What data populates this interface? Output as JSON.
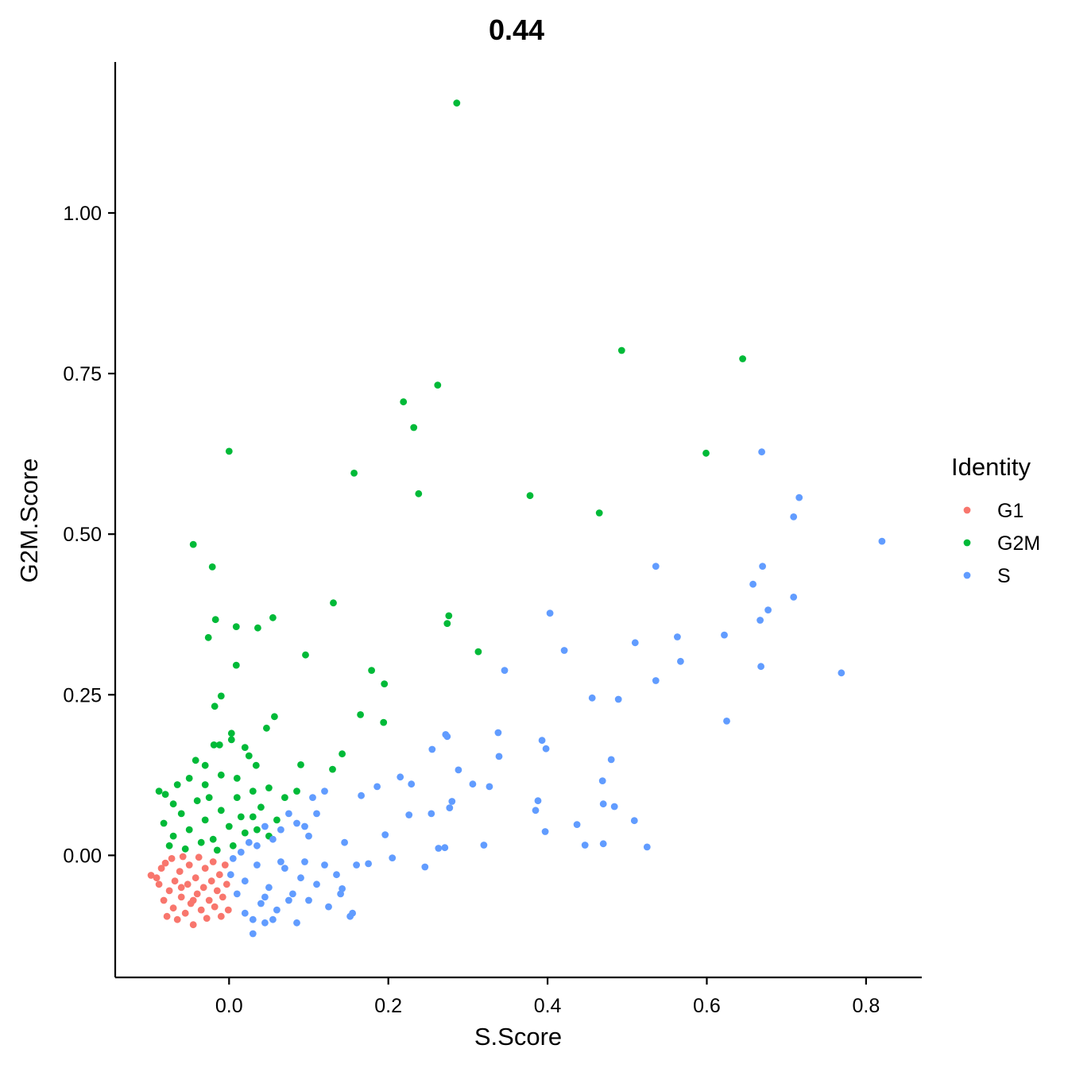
{
  "chart_data": {
    "type": "scatter",
    "title": "0.44",
    "xlabel": "S.Score",
    "ylabel": "G2M.Score",
    "xlim": [
      -0.143,
      0.87
    ],
    "ylim": [
      -0.19,
      1.235
    ],
    "x_ticks": [
      0.0,
      0.2,
      0.4,
      0.6,
      0.8
    ],
    "x_tick_labels": [
      "0.0",
      "0.2",
      "0.4",
      "0.6",
      "0.8"
    ],
    "y_ticks": [
      0.0,
      0.25,
      0.5,
      0.75,
      1.0
    ],
    "y_tick_labels": [
      "0.00",
      "0.25",
      "0.50",
      "0.75",
      "1.00"
    ],
    "grid": false,
    "legend": {
      "title": "Identity",
      "position": "right",
      "entries": [
        "G1",
        "G2M",
        "S"
      ]
    },
    "series": [
      {
        "name": "G1",
        "color": "#F8766D",
        "points": [
          [
            -0.098,
            -0.031
          ],
          [
            -0.091,
            -0.035
          ],
          [
            -0.088,
            -0.045
          ],
          [
            -0.085,
            -0.02
          ],
          [
            -0.082,
            -0.07
          ],
          [
            -0.08,
            -0.012
          ],
          [
            -0.078,
            -0.095
          ],
          [
            -0.075,
            -0.055
          ],
          [
            -0.072,
            -0.005
          ],
          [
            -0.07,
            -0.082
          ],
          [
            -0.068,
            -0.04
          ],
          [
            -0.065,
            -0.1
          ],
          [
            -0.062,
            -0.025
          ],
          [
            -0.06,
            -0.065
          ],
          [
            -0.058,
            -0.002
          ],
          [
            -0.055,
            -0.09
          ],
          [
            -0.052,
            -0.045
          ],
          [
            -0.05,
            -0.015
          ],
          [
            -0.048,
            -0.075
          ],
          [
            -0.045,
            -0.108
          ],
          [
            -0.042,
            -0.035
          ],
          [
            -0.04,
            -0.06
          ],
          [
            -0.038,
            -0.003
          ],
          [
            -0.035,
            -0.085
          ],
          [
            -0.032,
            -0.05
          ],
          [
            -0.03,
            -0.02
          ],
          [
            -0.028,
            -0.098
          ],
          [
            -0.025,
            -0.07
          ],
          [
            -0.022,
            -0.04
          ],
          [
            -0.02,
            -0.01
          ],
          [
            -0.018,
            -0.08
          ],
          [
            -0.015,
            -0.055
          ],
          [
            -0.012,
            -0.03
          ],
          [
            -0.01,
            -0.095
          ],
          [
            -0.008,
            -0.065
          ],
          [
            -0.005,
            -0.015
          ],
          [
            -0.003,
            -0.045
          ],
          [
            -0.001,
            -0.085
          ],
          [
            -0.06,
            -0.05
          ],
          [
            -0.045,
            -0.07
          ]
        ]
      },
      {
        "name": "G2M",
        "color": "#00BA38",
        "points": [
          [
            0.286,
            1.171
          ],
          [
            0.493,
            0.786
          ],
          [
            0.645,
            0.773
          ],
          [
            0.262,
            0.732
          ],
          [
            0.219,
            0.706
          ],
          [
            0.232,
            0.666
          ],
          [
            0.0,
            0.629
          ],
          [
            0.599,
            0.626
          ],
          [
            0.157,
            0.595
          ],
          [
            0.238,
            0.563
          ],
          [
            0.378,
            0.56
          ],
          [
            0.465,
            0.533
          ],
          [
            -0.045,
            0.484
          ],
          [
            -0.021,
            0.449
          ],
          [
            0.131,
            0.393
          ],
          [
            0.276,
            0.373
          ],
          [
            0.055,
            0.37
          ],
          [
            -0.017,
            0.367
          ],
          [
            0.274,
            0.361
          ],
          [
            0.009,
            0.356
          ],
          [
            0.036,
            0.354
          ],
          [
            -0.026,
            0.339
          ],
          [
            0.313,
            0.317
          ],
          [
            0.096,
            0.312
          ],
          [
            0.009,
            0.296
          ],
          [
            0.179,
            0.288
          ],
          [
            0.195,
            0.267
          ],
          [
            -0.01,
            0.248
          ],
          [
            -0.018,
            0.232
          ],
          [
            0.165,
            0.219
          ],
          [
            0.057,
            0.216
          ],
          [
            0.194,
            0.207
          ],
          [
            0.047,
            0.198
          ],
          [
            0.003,
            0.19
          ],
          [
            0.003,
            0.18
          ],
          [
            -0.019,
            0.172
          ],
          [
            -0.012,
            0.172
          ],
          [
            0.142,
            0.158
          ],
          [
            0.02,
            0.168
          ],
          [
            0.025,
            0.155
          ],
          [
            0.09,
            0.141
          ],
          [
            0.13,
            0.134
          ],
          [
            0.034,
            0.14
          ],
          [
            -0.042,
            0.148
          ],
          [
            -0.03,
            0.14
          ],
          [
            -0.088,
            0.1
          ],
          [
            -0.07,
            0.08
          ],
          [
            -0.05,
            0.12
          ],
          [
            -0.03,
            0.11
          ],
          [
            -0.01,
            0.125
          ],
          [
            0.01,
            0.12
          ],
          [
            0.03,
            0.1
          ],
          [
            0.05,
            0.105
          ],
          [
            0.07,
            0.09
          ],
          [
            0.085,
            0.1
          ],
          [
            -0.082,
            0.05
          ],
          [
            -0.07,
            0.03
          ],
          [
            -0.06,
            0.065
          ],
          [
            -0.05,
            0.04
          ],
          [
            -0.04,
            0.085
          ],
          [
            -0.03,
            0.055
          ],
          [
            -0.02,
            0.025
          ],
          [
            -0.01,
            0.07
          ],
          [
            0.0,
            0.045
          ],
          [
            0.01,
            0.09
          ],
          [
            0.02,
            0.035
          ],
          [
            0.03,
            0.06
          ],
          [
            0.04,
            0.075
          ],
          [
            0.05,
            0.03
          ],
          [
            0.06,
            0.055
          ],
          [
            -0.075,
            0.015
          ],
          [
            -0.055,
            0.01
          ],
          [
            -0.035,
            0.02
          ],
          [
            -0.015,
            0.008
          ],
          [
            0.005,
            0.015
          ],
          [
            -0.08,
            0.095
          ],
          [
            -0.065,
            0.11
          ],
          [
            -0.025,
            0.09
          ],
          [
            0.015,
            0.06
          ],
          [
            0.035,
            0.04
          ]
        ]
      },
      {
        "name": "S",
        "color": "#619CFF",
        "points": [
          [
            0.82,
            0.489
          ],
          [
            0.669,
            0.628
          ],
          [
            0.716,
            0.557
          ],
          [
            0.709,
            0.527
          ],
          [
            0.536,
            0.45
          ],
          [
            0.67,
            0.45
          ],
          [
            0.658,
            0.422
          ],
          [
            0.709,
            0.402
          ],
          [
            0.677,
            0.382
          ],
          [
            0.403,
            0.377
          ],
          [
            0.667,
            0.366
          ],
          [
            0.622,
            0.343
          ],
          [
            0.563,
            0.34
          ],
          [
            0.51,
            0.331
          ],
          [
            0.421,
            0.319
          ],
          [
            0.567,
            0.302
          ],
          [
            0.668,
            0.294
          ],
          [
            0.346,
            0.288
          ],
          [
            0.769,
            0.284
          ],
          [
            0.536,
            0.272
          ],
          [
            0.456,
            0.245
          ],
          [
            0.489,
            0.243
          ],
          [
            0.625,
            0.209
          ],
          [
            0.338,
            0.191
          ],
          [
            0.272,
            0.188
          ],
          [
            0.274,
            0.185
          ],
          [
            0.393,
            0.179
          ],
          [
            0.255,
            0.165
          ],
          [
            0.398,
            0.166
          ],
          [
            0.339,
            0.154
          ],
          [
            0.48,
            0.149
          ],
          [
            0.288,
            0.133
          ],
          [
            0.215,
            0.122
          ],
          [
            0.469,
            0.116
          ],
          [
            0.229,
            0.111
          ],
          [
            0.306,
            0.111
          ],
          [
            0.327,
            0.107
          ],
          [
            0.166,
            0.093
          ],
          [
            0.186,
            0.107
          ],
          [
            0.388,
            0.085
          ],
          [
            0.28,
            0.084
          ],
          [
            0.47,
            0.08
          ],
          [
            0.484,
            0.076
          ],
          [
            0.277,
            0.074
          ],
          [
            0.385,
            0.07
          ],
          [
            0.254,
            0.065
          ],
          [
            0.226,
            0.063
          ],
          [
            0.509,
            0.054
          ],
          [
            0.437,
            0.048
          ],
          [
            0.397,
            0.037
          ],
          [
            0.196,
            0.032
          ],
          [
            0.32,
            0.016
          ],
          [
            0.447,
            0.016
          ],
          [
            0.47,
            0.018
          ],
          [
            0.525,
            0.013
          ],
          [
            0.271,
            0.012
          ],
          [
            0.263,
            0.011
          ],
          [
            0.205,
            -0.004
          ],
          [
            0.246,
            -0.018
          ],
          [
            0.175,
            -0.013
          ],
          [
            0.155,
            -0.09
          ],
          [
            0.142,
            -0.052
          ],
          [
            0.152,
            -0.095
          ],
          [
            0.12,
            -0.015
          ],
          [
            0.1,
            0.03
          ],
          [
            0.12,
            0.1
          ],
          [
            0.105,
            0.09
          ],
          [
            0.11,
            0.065
          ],
          [
            0.095,
            0.045
          ],
          [
            0.085,
            0.05
          ],
          [
            0.075,
            0.065
          ],
          [
            0.065,
            0.04
          ],
          [
            0.055,
            0.025
          ],
          [
            0.045,
            0.045
          ],
          [
            0.035,
            0.015
          ],
          [
            0.025,
            0.02
          ],
          [
            0.015,
            0.005
          ],
          [
            0.005,
            -0.005
          ],
          [
            0.002,
            -0.03
          ],
          [
            0.01,
            -0.06
          ],
          [
            0.02,
            -0.09
          ],
          [
            0.03,
            -0.1
          ],
          [
            0.04,
            -0.075
          ],
          [
            0.05,
            -0.05
          ],
          [
            0.06,
            -0.085
          ],
          [
            0.07,
            -0.02
          ],
          [
            0.08,
            -0.06
          ],
          [
            0.09,
            -0.035
          ],
          [
            0.1,
            -0.07
          ],
          [
            0.11,
            -0.045
          ],
          [
            0.02,
            -0.04
          ],
          [
            0.035,
            -0.015
          ],
          [
            0.045,
            -0.065
          ],
          [
            0.055,
            -0.1
          ],
          [
            0.065,
            -0.01
          ],
          [
            0.075,
            -0.07
          ],
          [
            0.085,
            -0.105
          ],
          [
            0.095,
            -0.01
          ],
          [
            0.125,
            -0.08
          ],
          [
            0.135,
            -0.03
          ],
          [
            0.03,
            -0.122
          ],
          [
            0.045,
            -0.105
          ],
          [
            0.14,
            -0.06
          ],
          [
            0.145,
            0.02
          ],
          [
            0.16,
            -0.015
          ]
        ]
      }
    ]
  }
}
